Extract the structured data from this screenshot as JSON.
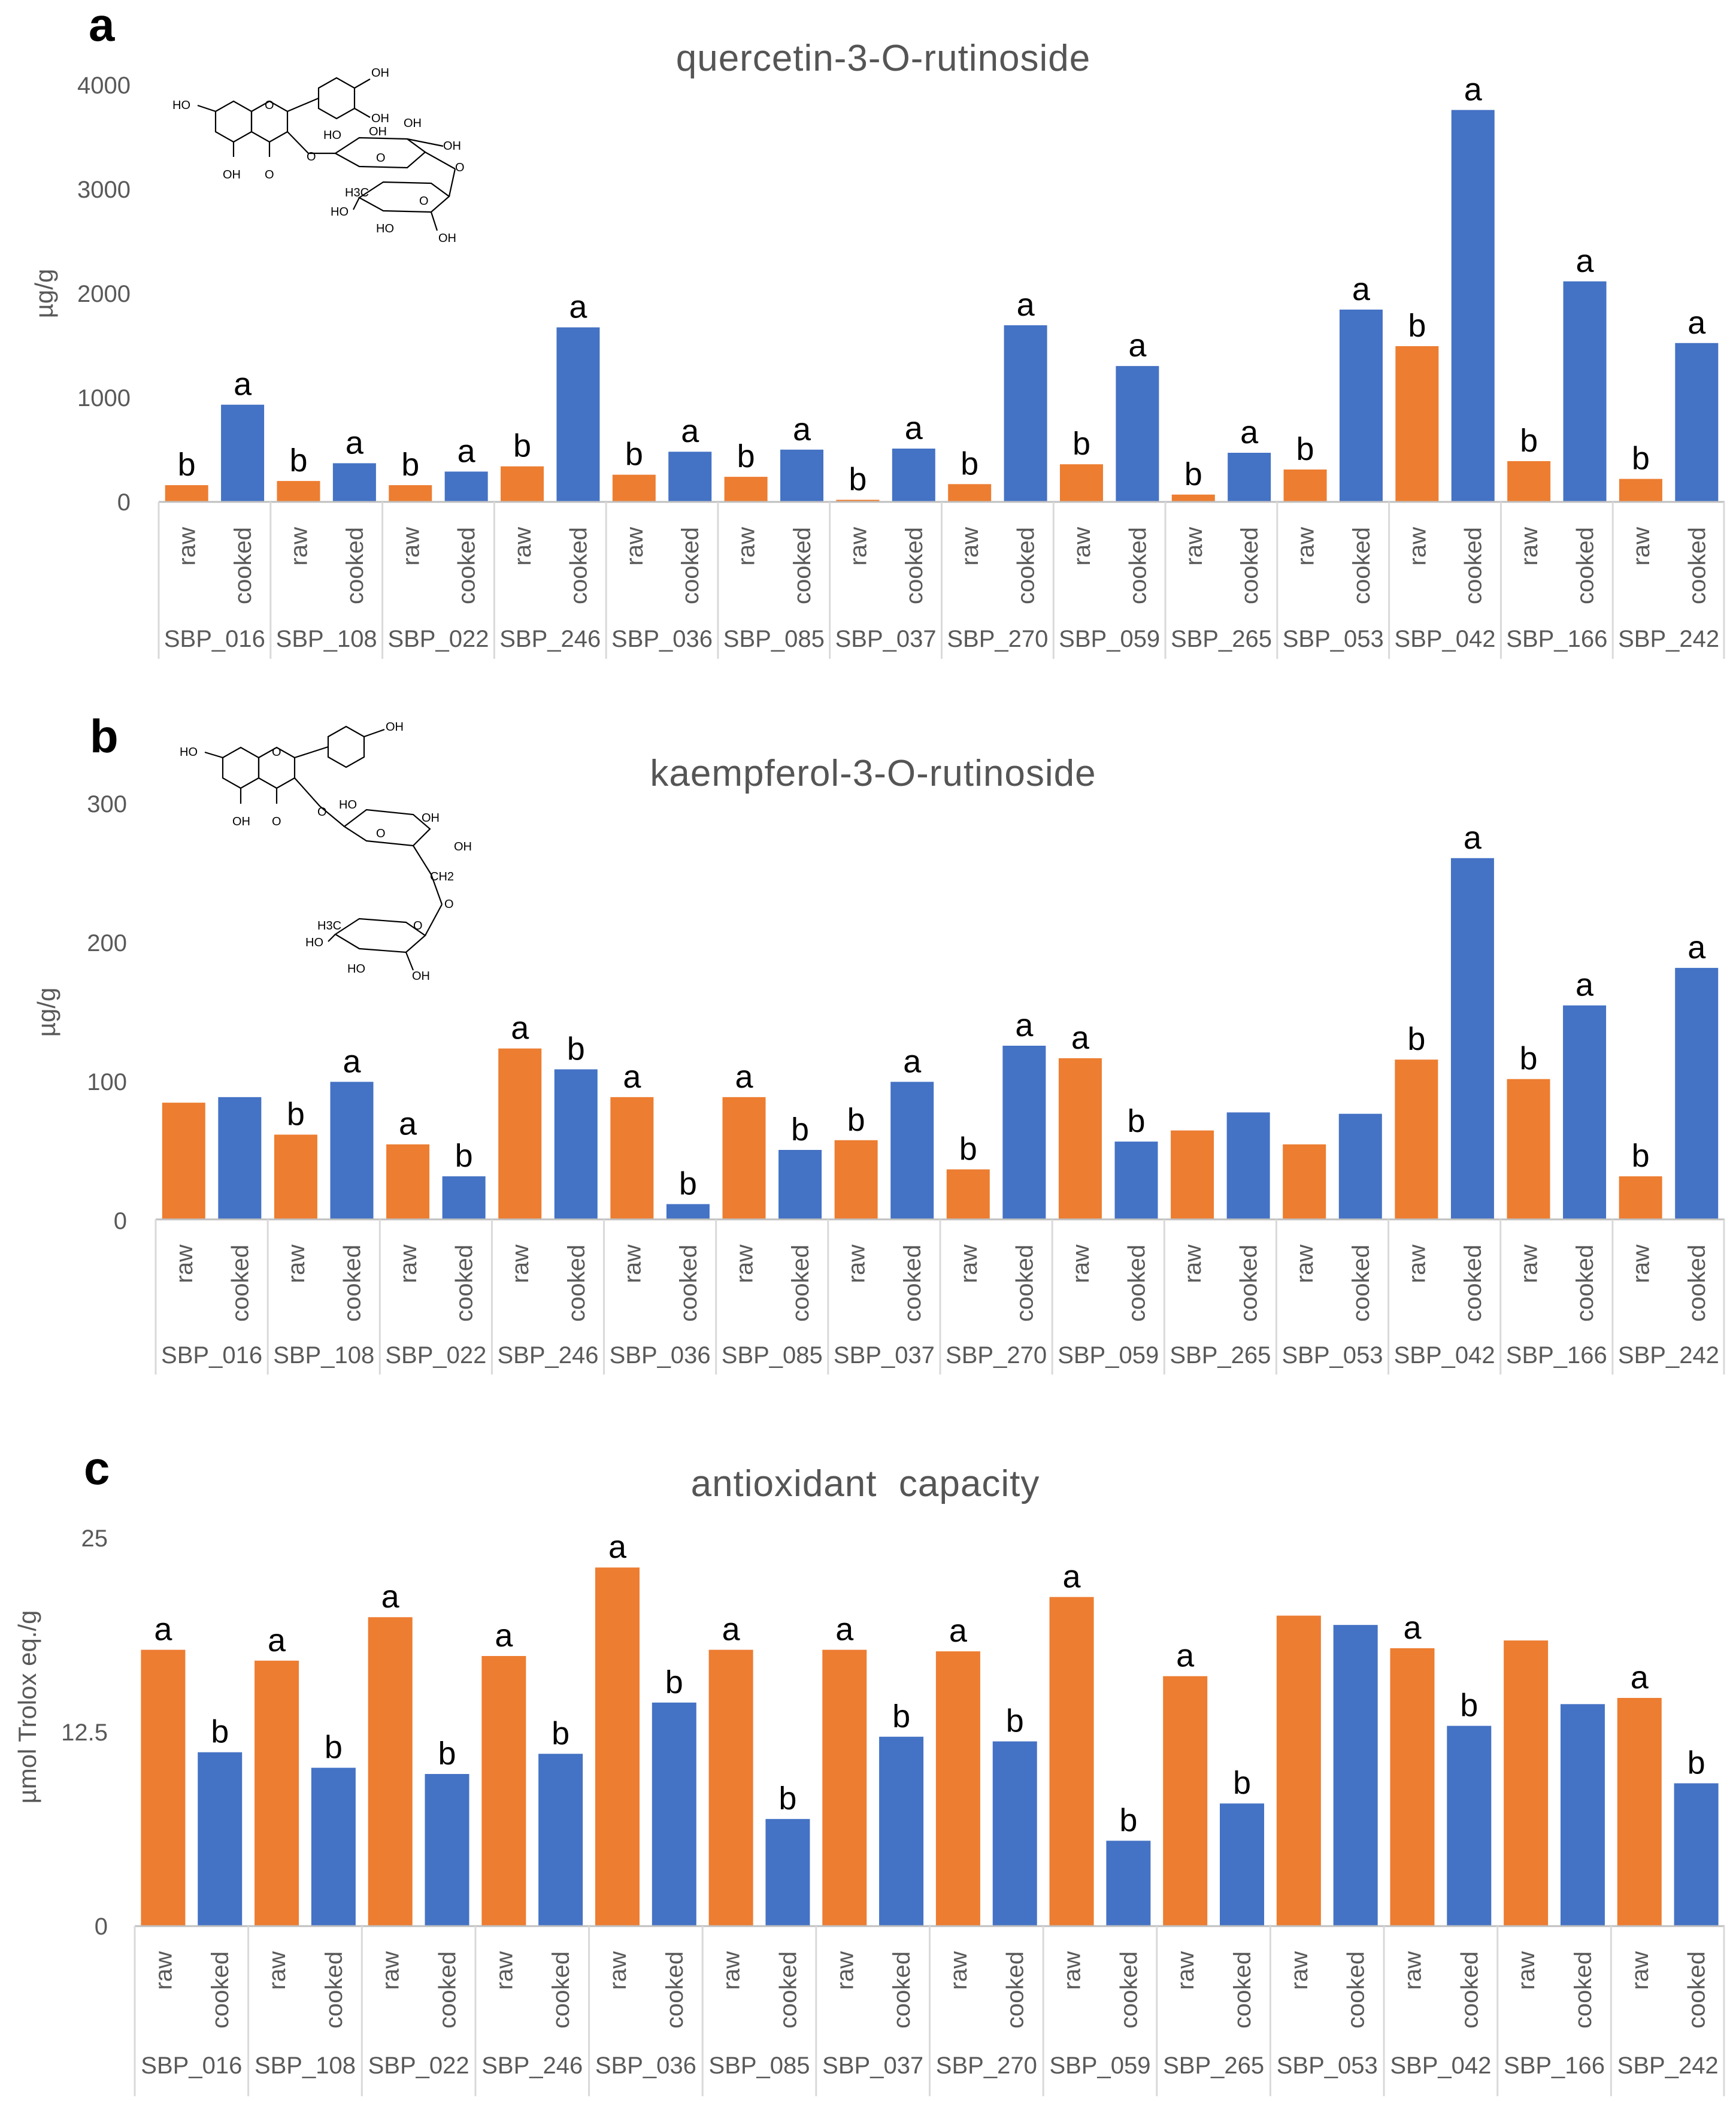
{
  "colors": {
    "raw": "#ED7D31",
    "cooked": "#4472C4",
    "axis": "#bfbfbf",
    "text": "#595959"
  },
  "condition_labels": [
    "raw",
    "cooked"
  ],
  "chart_data": [
    {
      "type": "bar",
      "panel": "a",
      "title": "quercetin-3-O-rutinoside",
      "ylabel": "µg/g",
      "ylim": [
        0,
        4000
      ],
      "yticks": [
        "0",
        "1000",
        "2000",
        "3000",
        "4000"
      ],
      "categories": [
        "SBP_016",
        "SBP_108",
        "SBP_022",
        "SBP_246",
        "SBP_036",
        "SBP_085",
        "SBP_037",
        "SBP_270",
        "SBP_059",
        "SBP_265",
        "SBP_053",
        "SBP_042",
        "SBP_166",
        "SBP_242"
      ],
      "series": [
        {
          "name": "raw",
          "values": [
            160,
            200,
            160,
            340,
            260,
            240,
            20,
            170,
            360,
            70,
            310,
            1490,
            390,
            220
          ],
          "labels": [
            "b",
            "b",
            "b",
            "b",
            "b",
            "b",
            "b",
            "b",
            "b",
            "b",
            "b",
            "b",
            "b",
            "b"
          ]
        },
        {
          "name": "cooked",
          "values": [
            930,
            370,
            290,
            1670,
            480,
            500,
            510,
            1690,
            1300,
            470,
            1840,
            3750,
            2110,
            1520
          ],
          "labels": [
            "a",
            "a",
            "a",
            "a",
            "a",
            "a",
            "a",
            "a",
            "a",
            "a",
            "a",
            "a",
            "a",
            "a"
          ]
        }
      ],
      "structure_labels": [
        "HO",
        "OH",
        "OH",
        "O",
        "OH",
        "O",
        "O",
        "HO",
        "OH",
        "OH",
        "OH",
        "O",
        "O",
        "H3C",
        "HO",
        "HO",
        "OH",
        "O"
      ]
    },
    {
      "type": "bar",
      "panel": "b",
      "title": "kaempferol-3-O-rutinoside",
      "ylabel": "µg/g",
      "ylim": [
        0,
        300
      ],
      "yticks": [
        "0",
        "100",
        "200",
        "300"
      ],
      "categories": [
        "SBP_016",
        "SBP_108",
        "SBP_022",
        "SBP_246",
        "SBP_036",
        "SBP_085",
        "SBP_037",
        "SBP_270",
        "SBP_059",
        "SBP_265",
        "SBP_053",
        "SBP_042",
        "SBP_166",
        "SBP_242"
      ],
      "series": [
        {
          "name": "raw",
          "values": [
            84,
            61,
            54,
            123,
            88,
            88,
            57,
            36,
            116,
            64,
            54,
            115,
            101,
            31
          ],
          "labels": [
            "",
            "b",
            "a",
            "a",
            "a",
            "a",
            "b",
            "b",
            "a",
            "",
            "",
            "b",
            "b",
            "b"
          ]
        },
        {
          "name": "cooked",
          "values": [
            88,
            99,
            31,
            108,
            11,
            50,
            99,
            125,
            56,
            77,
            76,
            260,
            154,
            181
          ],
          "labels": [
            "",
            "a",
            "b",
            "b",
            "b",
            "b",
            "a",
            "a",
            "b",
            "",
            "",
            "a",
            "a",
            "a"
          ]
        }
      ],
      "structure_labels": [
        "OH",
        "HO",
        "O",
        "OH",
        "O",
        "O",
        "HO",
        "O",
        "OH",
        "OH",
        "CH2",
        "O",
        "H3C",
        "O",
        "HO",
        "HO",
        "OH"
      ]
    },
    {
      "type": "bar",
      "panel": "c",
      "title": "antioxidant  capacity",
      "ylabel": "µmol Trolox eq./g",
      "ylim": [
        0,
        25
      ],
      "yticks": [
        "0",
        "12.5",
        "25"
      ],
      "categories": [
        "SBP_016",
        "SBP_108",
        "SBP_022",
        "SBP_246",
        "SBP_036",
        "SBP_085",
        "SBP_037",
        "SBP_270",
        "SBP_059",
        "SBP_265",
        "SBP_053",
        "SBP_042",
        "SBP_166",
        "SBP_242"
      ],
      "series": [
        {
          "name": "raw",
          "values": [
            17.8,
            17.1,
            19.9,
            17.4,
            23.1,
            17.8,
            17.8,
            17.7,
            21.2,
            16.1,
            20.0,
            17.9,
            18.4,
            14.7
          ],
          "labels": [
            "a",
            "a",
            "a",
            "a",
            "a",
            "a",
            "a",
            "a",
            "a",
            "a",
            "",
            "a",
            "",
            "a"
          ]
        },
        {
          "name": "cooked",
          "values": [
            11.2,
            10.2,
            9.8,
            11.1,
            14.4,
            6.9,
            12.2,
            11.9,
            5.5,
            7.9,
            19.4,
            12.9,
            14.3,
            9.2
          ],
          "labels": [
            "b",
            "b",
            "b",
            "b",
            "b",
            "b",
            "b",
            "b",
            "b",
            "b",
            "",
            "b",
            "",
            "b"
          ]
        }
      ]
    }
  ]
}
